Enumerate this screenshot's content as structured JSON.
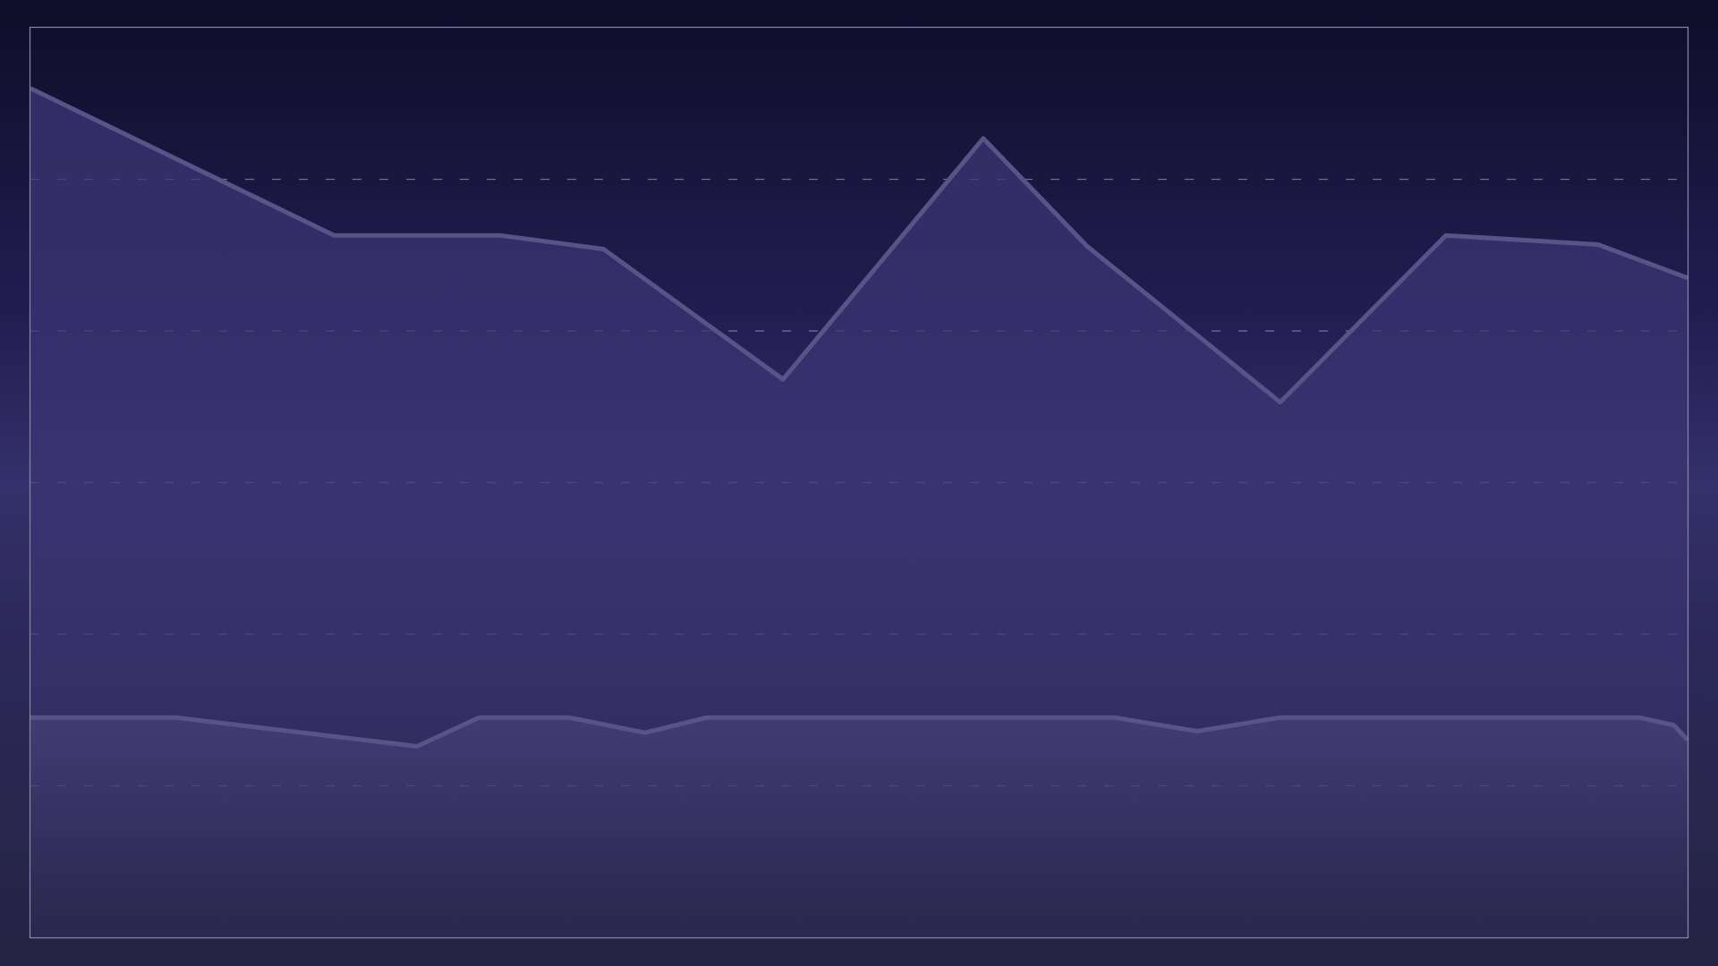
{
  "chart_data": {
    "type": "area",
    "title": "",
    "xlabel": "",
    "ylabel": "",
    "ylim": [
      0,
      6
    ],
    "grid": true,
    "grid_style": "dashed",
    "legend": "none",
    "x": [
      0,
      1,
      2,
      3,
      4,
      5,
      6,
      7,
      8,
      9,
      10,
      11,
      12,
      13,
      14,
      15,
      16,
      17,
      18,
      19,
      20,
      21,
      22,
      23,
      24
    ],
    "series": [
      {
        "values": [
          5.6,
          4.63,
          4.63,
          4.54,
          3.68,
          5.27,
          4.56,
          3.53,
          4.63,
          4.57,
          4.35
        ],
        "x": [
          0,
          4.4,
          6.8,
          8.3,
          10.9,
          13.8,
          15.3,
          18.1,
          20.5,
          22.7,
          24
        ]
      },
      {
        "values": [
          1.45,
          1.45,
          1.26,
          1.45,
          1.45,
          1.35,
          1.45,
          1.45,
          1.45,
          1.36,
          1.45,
          1.45,
          1.4,
          1.3
        ],
        "x": [
          0,
          2.1,
          5.6,
          6.5,
          7.8,
          8.9,
          9.8,
          15,
          15.7,
          16.9,
          18.1,
          23.3,
          23.8,
          24
        ]
      }
    ],
    "colors": {
      "area_fill": "#3a3470",
      "line": "#5a5388",
      "grid": "#b8b4d0",
      "frame": "#8a86a8"
    }
  }
}
